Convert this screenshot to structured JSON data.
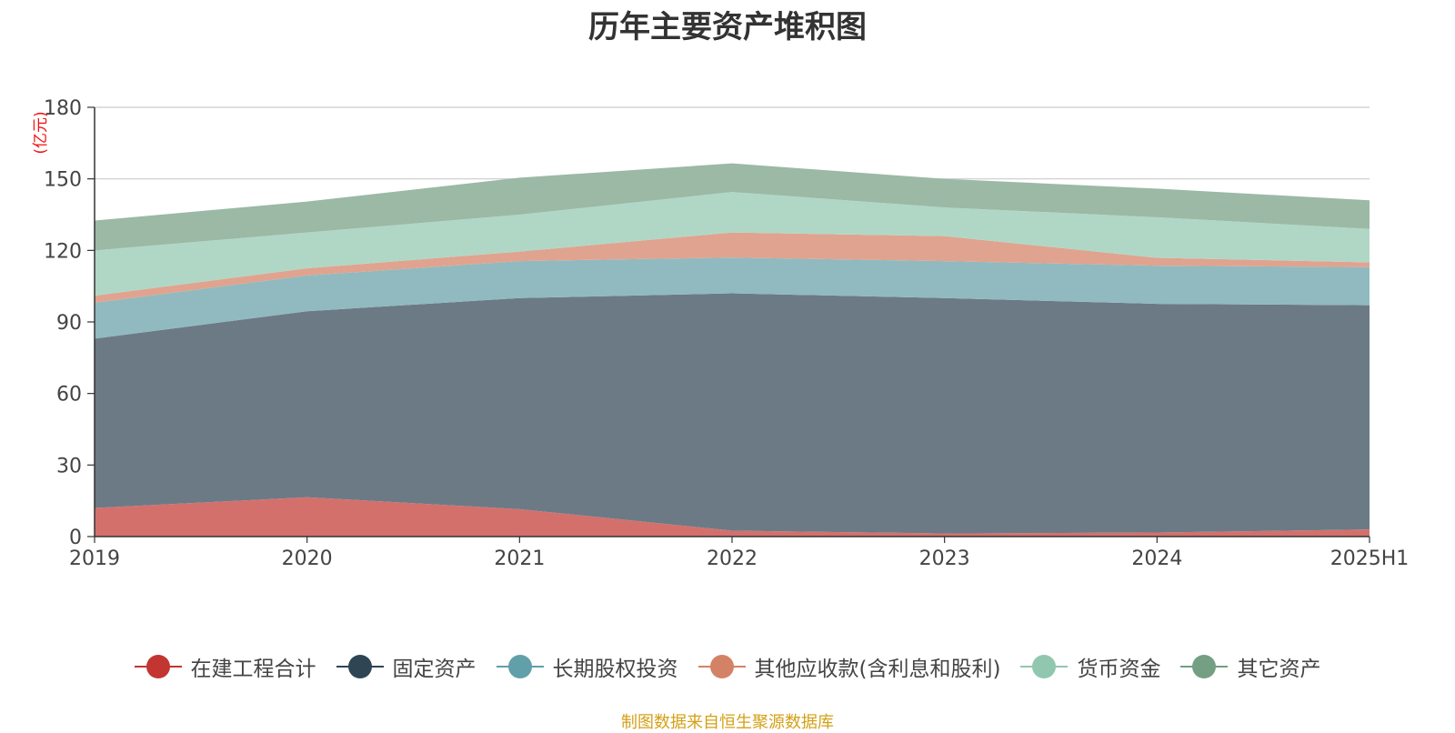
{
  "title": "历年主要资产堆积图",
  "source": "制图数据来自恒生聚源数据库",
  "chart_data": {
    "type": "area",
    "stacked": true,
    "title": "历年主要资产堆积图",
    "ylabel": "(亿元)",
    "ylim": [
      0,
      180
    ],
    "yticks": [
      "0",
      "30",
      "60",
      "90",
      "120",
      "150",
      "180"
    ],
    "categories": [
      "2019",
      "2020",
      "2021",
      "2022",
      "2023",
      "2024",
      "2025H1"
    ],
    "grid": true,
    "legend_position": "bottom",
    "series": [
      {
        "name": "在建工程合计",
        "color": "#c23531",
        "area_color": "#d4706c",
        "values": [
          12,
          16.5,
          11.5,
          2.5,
          1.3,
          1.7,
          3
        ]
      },
      {
        "name": "固定资产",
        "color": "#2f4554",
        "area_color": "#6c7a86",
        "values": [
          71,
          78,
          88.5,
          99.5,
          98.7,
          95.9,
          94
        ]
      },
      {
        "name": "长期股权投资",
        "color": "#61a0a8",
        "area_color": "#90babf",
        "values": [
          15,
          15,
          15.5,
          15,
          15.5,
          16,
          16
        ]
      },
      {
        "name": "其他应收款(含利息和股利)",
        "color": "#d48265",
        "area_color": "#e0a38f",
        "values": [
          3,
          3,
          4,
          10.5,
          10.5,
          3.3,
          2
        ]
      },
      {
        "name": "货币资金",
        "color": "#91c7ae",
        "area_color": "#b0d7c5",
        "values": [
          19,
          15,
          15.5,
          17,
          12,
          17,
          14
        ]
      },
      {
        "name": "其它资产",
        "color": "#749f83",
        "area_color": "#9bb9a5",
        "values": [
          12.5,
          13,
          15.5,
          12,
          12,
          12,
          12
        ]
      }
    ]
  }
}
